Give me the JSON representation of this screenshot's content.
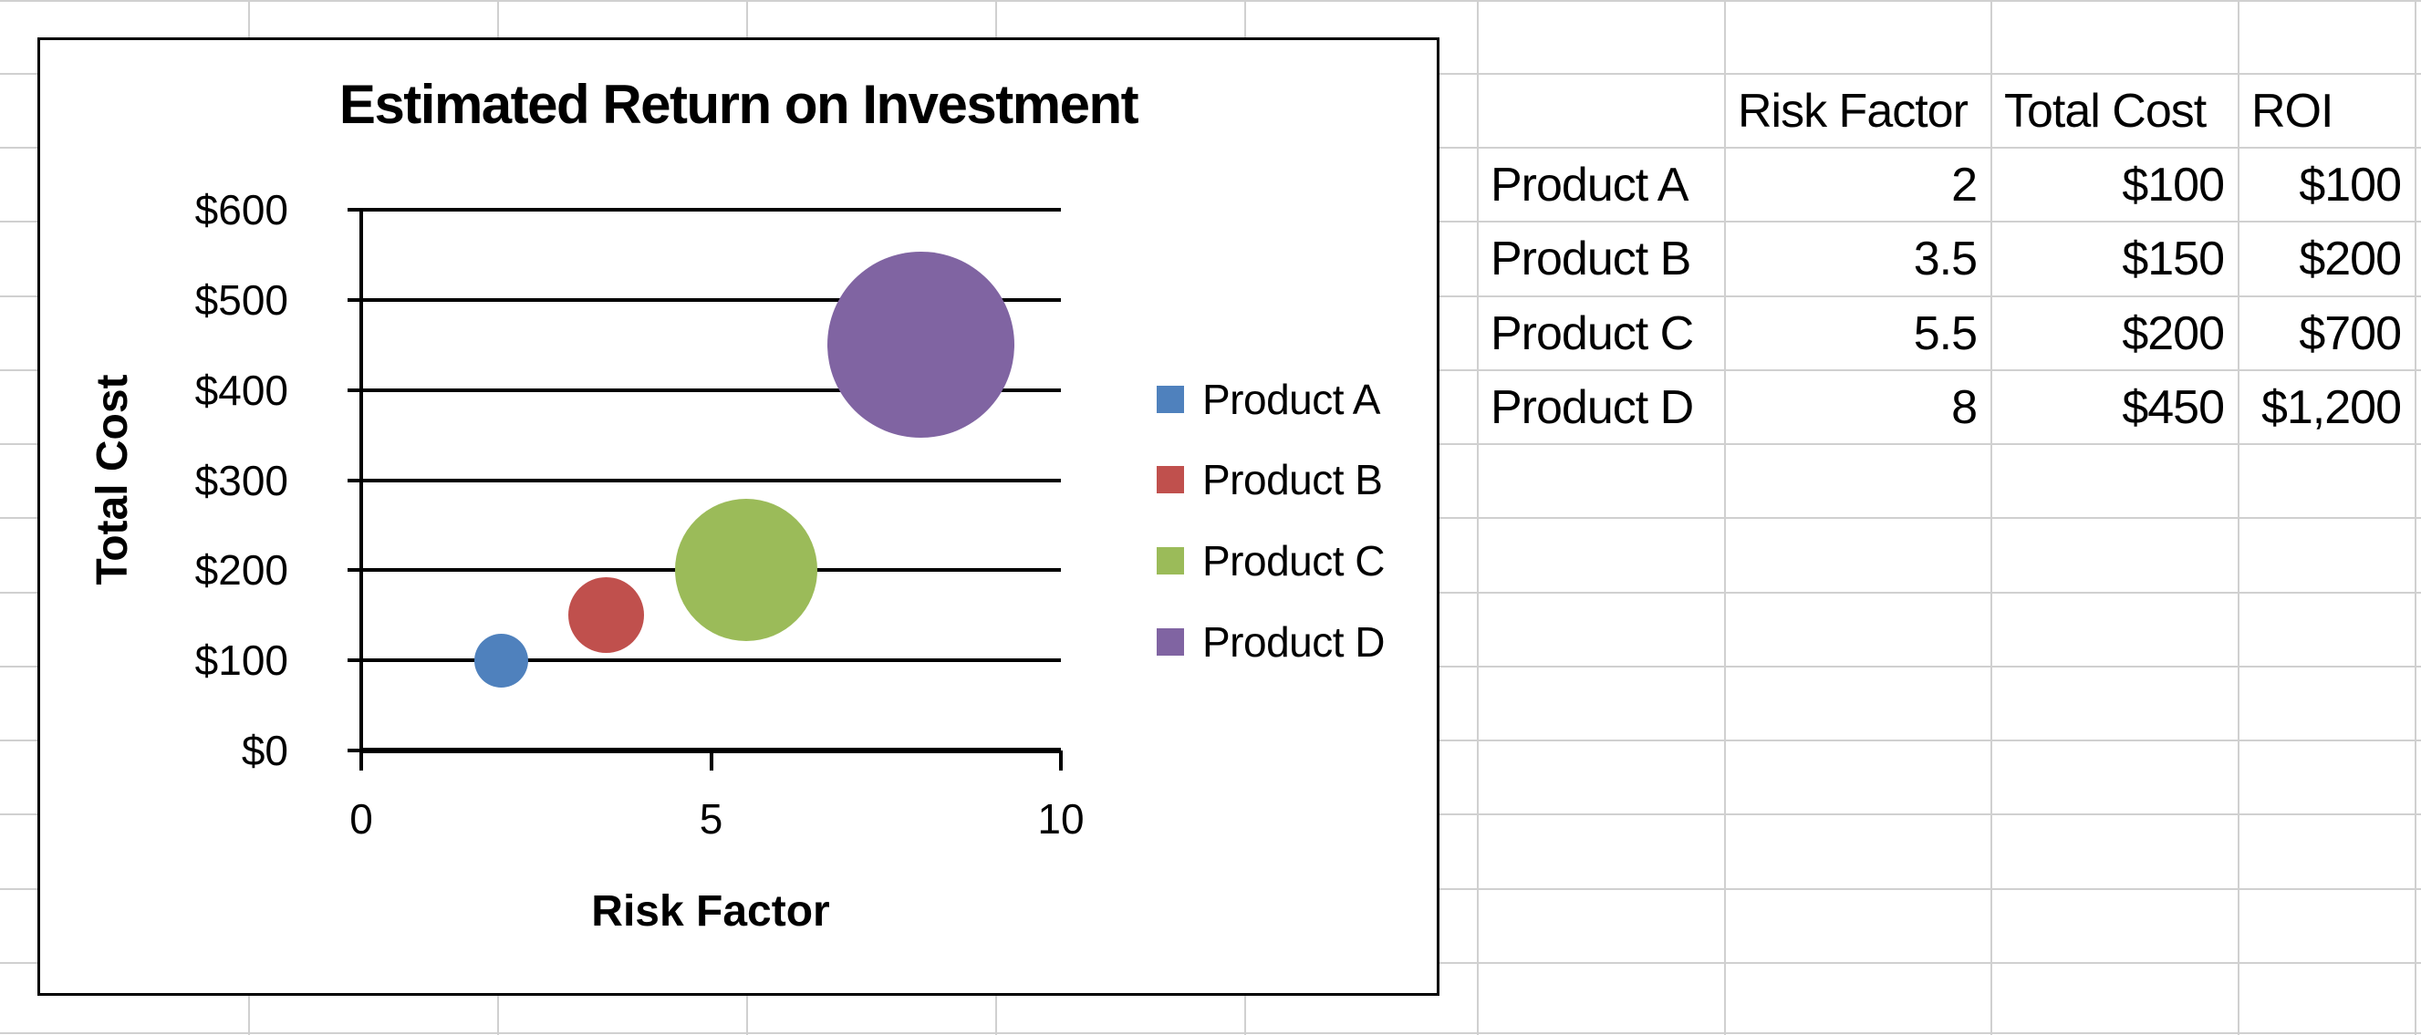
{
  "sheet": {
    "table": {
      "headers": [
        "Risk Factor",
        "Total Cost",
        "ROI"
      ],
      "rows": [
        {
          "name": "Product A",
          "risk": "2",
          "cost": "$100",
          "roi": "$100"
        },
        {
          "name": "Product B",
          "risk": "3.5",
          "cost": "$150",
          "roi": "$200"
        },
        {
          "name": "Product C",
          "risk": "5.5",
          "cost": "$200",
          "roi": "$700"
        },
        {
          "name": "Product D",
          "risk": "8",
          "cost": "$450",
          "roi": "$1,200"
        }
      ]
    }
  },
  "chart_data": {
    "type": "bubble",
    "title": "Estimated Return on Investment",
    "xlabel": "Risk Factor",
    "ylabel": "Total Cost",
    "xlim": [
      0,
      10
    ],
    "ylim": [
      0,
      600
    ],
    "x_tick_values": [
      0,
      5,
      10
    ],
    "x_tick_labels": [
      "0",
      "5",
      "10"
    ],
    "y_tick_values": [
      0,
      100,
      200,
      300,
      400,
      500,
      600
    ],
    "y_tick_labels": [
      "$0",
      "$100",
      "$200",
      "$300",
      "$400",
      "$500",
      "$600"
    ],
    "grid": "horizontal-only",
    "legend_position": "right",
    "series": [
      {
        "name": "Product A",
        "color": "#4F81BD",
        "points": [
          {
            "x": 2,
            "y": 100,
            "size": 100
          }
        ]
      },
      {
        "name": "Product B",
        "color": "#C0504D",
        "points": [
          {
            "x": 3.5,
            "y": 150,
            "size": 200
          }
        ]
      },
      {
        "name": "Product C",
        "color": "#9BBB59",
        "points": [
          {
            "x": 5.5,
            "y": 200,
            "size": 700
          }
        ]
      },
      {
        "name": "Product D",
        "color": "#8064A2",
        "points": [
          {
            "x": 8,
            "y": 450,
            "size": 1200
          }
        ]
      }
    ]
  }
}
